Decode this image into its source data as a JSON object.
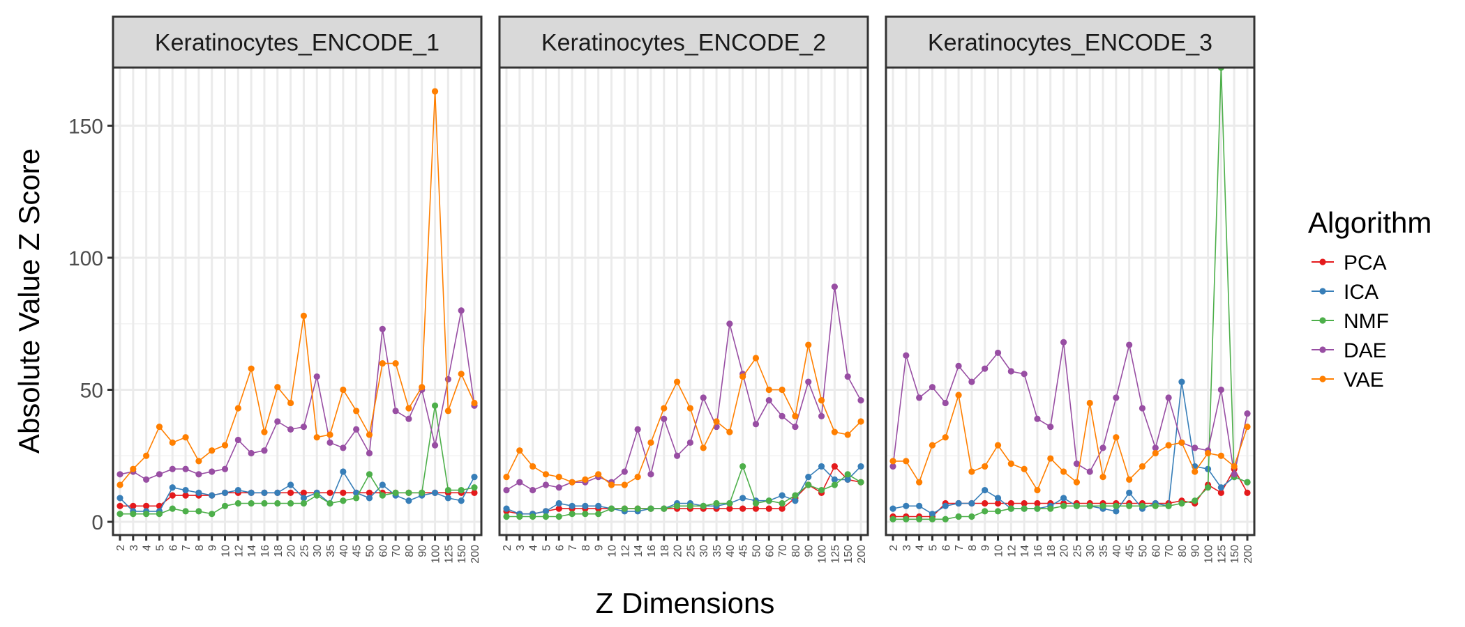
{
  "chart_data": {
    "type": "line",
    "xlabel": "Z Dimensions",
    "ylabel": "Absolute Value Z Score",
    "ylim": [
      -5,
      172
    ],
    "y_ticks": [
      0,
      50,
      100,
      150
    ],
    "grid": true,
    "legend": {
      "title": "Algorithm",
      "placement": "right"
    },
    "categories": [
      "2",
      "3",
      "4",
      "5",
      "6",
      "7",
      "8",
      "9",
      "10",
      "12",
      "14",
      "16",
      "18",
      "20",
      "25",
      "30",
      "35",
      "40",
      "45",
      "50",
      "60",
      "70",
      "80",
      "90",
      "100",
      "125",
      "150",
      "200"
    ],
    "colors": {
      "PCA": "#e41a1c",
      "ICA": "#377eb8",
      "NMF": "#4daf4a",
      "DAE": "#984ea3",
      "VAE": "#ff7f00"
    },
    "panels": [
      {
        "title": "Keratinocytes_ENCODE_1",
        "series": [
          {
            "name": "PCA",
            "values": [
              6,
              6,
              6,
              6,
              10,
              10,
              10,
              10,
              11,
              11,
              11,
              11,
              11,
              11,
              11,
              11,
              11,
              11,
              11,
              11,
              11,
              11,
              11,
              11,
              11,
              11,
              11,
              11
            ]
          },
          {
            "name": "ICA",
            "values": [
              9,
              4,
              4,
              4,
              13,
              12,
              11,
              10,
              11,
              12,
              11,
              11,
              11,
              14,
              9,
              11,
              7,
              19,
              11,
              9,
              14,
              10,
              8,
              10,
              11,
              9,
              8,
              17
            ]
          },
          {
            "name": "NMF",
            "values": [
              3,
              3,
              3,
              3,
              5,
              4,
              4,
              3,
              6,
              7,
              7,
              7,
              7,
              7,
              7,
              10,
              7,
              8,
              9,
              18,
              10,
              11,
              11,
              11,
              44,
              12,
              12,
              13
            ]
          },
          {
            "name": "DAE",
            "values": [
              18,
              19,
              16,
              18,
              20,
              20,
              18,
              19,
              20,
              31,
              26,
              27,
              38,
              35,
              36,
              55,
              30,
              28,
              35,
              26,
              73,
              42,
              39,
              50,
              29,
              54,
              80,
              44
            ]
          },
          {
            "name": "VAE",
            "values": [
              14,
              20,
              25,
              36,
              30,
              32,
              23,
              27,
              29,
              43,
              58,
              34,
              51,
              45,
              78,
              32,
              33,
              50,
              42,
              33,
              60,
              60,
              43,
              51,
              163,
              42,
              56,
              45
            ]
          }
        ]
      },
      {
        "title": "Keratinocytes_ENCODE_2",
        "series": [
          {
            "name": "PCA",
            "values": [
              4,
              3,
              3,
              4,
              5,
              5,
              5,
              5,
              5,
              5,
              5,
              5,
              5,
              5,
              5,
              5,
              5,
              5,
              5,
              5,
              5,
              5,
              9,
              14,
              11,
              21,
              16,
              15
            ]
          },
          {
            "name": "ICA",
            "values": [
              5,
              3,
              3,
              4,
              7,
              6,
              6,
              6,
              5,
              4,
              4,
              5,
              5,
              7,
              7,
              6,
              6,
              7,
              9,
              8,
              8,
              10,
              8,
              17,
              21,
              16,
              16,
              21
            ]
          },
          {
            "name": "NMF",
            "values": [
              2,
              2,
              2,
              2,
              2,
              3,
              3,
              3,
              5,
              5,
              5,
              5,
              5,
              6,
              6,
              6,
              7,
              7,
              21,
              7,
              8,
              7,
              10,
              14,
              12,
              14,
              18,
              15
            ]
          },
          {
            "name": "DAE",
            "values": [
              12,
              15,
              12,
              14,
              13,
              15,
              15,
              17,
              15,
              19,
              35,
              18,
              39,
              25,
              30,
              47,
              36,
              75,
              56,
              37,
              46,
              40,
              36,
              53,
              40,
              89,
              55,
              46
            ]
          },
          {
            "name": "VAE",
            "values": [
              17,
              27,
              21,
              18,
              17,
              15,
              16,
              18,
              14,
              14,
              17,
              30,
              43,
              53,
              43,
              28,
              38,
              34,
              55,
              62,
              50,
              50,
              40,
              67,
              46,
              34,
              33,
              38
            ]
          }
        ]
      },
      {
        "title": "Keratinocytes_ENCODE_3",
        "series": [
          {
            "name": "PCA",
            "values": [
              2,
              2,
              2,
              2,
              7,
              7,
              7,
              7,
              7,
              7,
              7,
              7,
              7,
              7,
              7,
              7,
              7,
              7,
              7,
              7,
              7,
              7,
              8,
              7,
              14,
              11,
              20,
              11
            ]
          },
          {
            "name": "ICA",
            "values": [
              5,
              6,
              6,
              3,
              6,
              7,
              7,
              12,
              9,
              5,
              5,
              5,
              6,
              9,
              6,
              6,
              5,
              4,
              11,
              5,
              7,
              6,
              53,
              21,
              20,
              13,
              17,
              15
            ]
          },
          {
            "name": "NMF",
            "values": [
              1,
              1,
              1,
              1,
              1,
              2,
              2,
              4,
              4,
              5,
              5,
              5,
              5,
              6,
              6,
              6,
              6,
              6,
              6,
              6,
              6,
              6,
              7,
              8,
              13,
              172,
              17,
              15
            ]
          },
          {
            "name": "DAE",
            "values": [
              21,
              63,
              47,
              51,
              45,
              59,
              53,
              58,
              64,
              57,
              56,
              39,
              36,
              68,
              22,
              19,
              28,
              47,
              67,
              43,
              28,
              47,
              30,
              28,
              27,
              50,
              18,
              41
            ]
          },
          {
            "name": "VAE",
            "values": [
              23,
              23,
              15,
              29,
              32,
              48,
              19,
              21,
              29,
              22,
              20,
              12,
              24,
              19,
              15,
              45,
              17,
              32,
              16,
              21,
              26,
              29,
              30,
              19,
              26,
              25,
              21,
              36
            ]
          }
        ]
      }
    ]
  }
}
